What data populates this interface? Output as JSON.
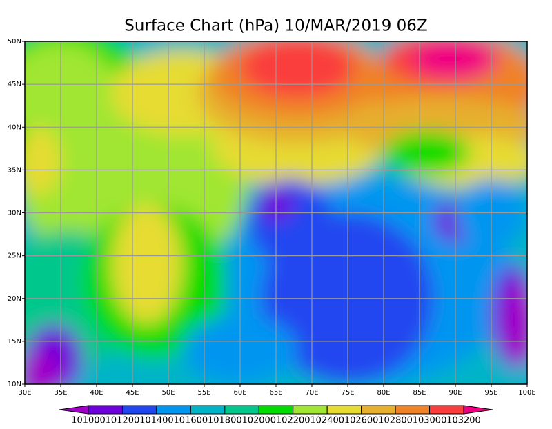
{
  "chart_data": {
    "type": "map",
    "title": "Surface Chart (hPa) 10/MAR/2019 06Z",
    "xlim": [
      30,
      100
    ],
    "ylim": [
      10,
      50
    ],
    "xticks": [
      {
        "value": 30,
        "label": "30E"
      },
      {
        "value": 35,
        "label": "35E"
      },
      {
        "value": 40,
        "label": "40E"
      },
      {
        "value": 45,
        "label": "45E"
      },
      {
        "value": 50,
        "label": "50E"
      },
      {
        "value": 55,
        "label": "55E"
      },
      {
        "value": 60,
        "label": "60E"
      },
      {
        "value": 65,
        "label": "65E"
      },
      {
        "value": 70,
        "label": "70E"
      },
      {
        "value": 75,
        "label": "75E"
      },
      {
        "value": 80,
        "label": "80E"
      },
      {
        "value": 85,
        "label": "85E"
      },
      {
        "value": 90,
        "label": "90E"
      },
      {
        "value": 95,
        "label": "95E"
      },
      {
        "value": 100,
        "label": "100E"
      }
    ],
    "yticks": [
      {
        "value": 10,
        "label": "10N"
      },
      {
        "value": 15,
        "label": "15N"
      },
      {
        "value": 20,
        "label": "20N"
      },
      {
        "value": 25,
        "label": "25N"
      },
      {
        "value": 30,
        "label": "30N"
      },
      {
        "value": 35,
        "label": "35N"
      },
      {
        "value": 40,
        "label": "40N"
      },
      {
        "value": 45,
        "label": "45N"
      },
      {
        "value": 50,
        "label": "50N"
      }
    ],
    "grid": true,
    "levels": [
      101000,
      101200,
      101400,
      101600,
      101800,
      102000,
      102200,
      102400,
      102600,
      102800,
      103000,
      103200
    ],
    "colors": [
      "#a000c8",
      "#6e00dc",
      "#2046f0",
      "#0096f0",
      "#00b4c8",
      "#00c88c",
      "#00dc00",
      "#a0e632",
      "#e6dc32",
      "#e6af2d",
      "#f08228",
      "#fa3c3c",
      "#f00082"
    ]
  }
}
